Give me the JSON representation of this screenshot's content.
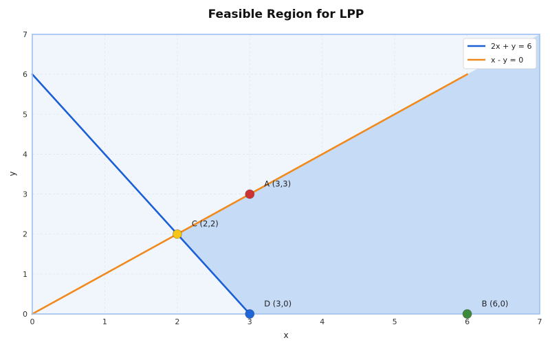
{
  "chart_data": {
    "type": "line",
    "title": "Feasible Region for LPP",
    "xlabel": "x",
    "ylabel": "y",
    "xlim": [
      0,
      7
    ],
    "ylim": [
      0,
      7
    ],
    "xticks": [
      0,
      1,
      2,
      3,
      4,
      5,
      6,
      7
    ],
    "yticks": [
      0,
      1,
      2,
      3,
      4,
      5,
      6,
      7
    ],
    "grid": true,
    "legend_position": "top-right",
    "colors": {
      "plot_bg": "#f1f6fd",
      "region": "#c6dbf6",
      "frame": "#9ec0ef",
      "grid": "#dfe6ef"
    },
    "series": [
      {
        "name": "2x + y = 6",
        "color": "#1a5fd6",
        "x": [
          0,
          3
        ],
        "y": [
          6,
          0
        ]
      },
      {
        "name": "x - y = 0",
        "color": "#f08a1c",
        "x": [
          0,
          6
        ],
        "y": [
          0,
          6
        ]
      }
    ],
    "feasible_region": [
      [
        2,
        2
      ],
      [
        3,
        0
      ],
      [
        7,
        0
      ],
      [
        7,
        7
      ]
    ],
    "points": [
      {
        "label": "A (3,3)",
        "x": 3,
        "y": 3,
        "color": "#cc3333"
      },
      {
        "label": "B (6,0)",
        "x": 6,
        "y": 0,
        "color": "#3f8a3a"
      },
      {
        "label": "C (2,2)",
        "x": 2,
        "y": 2,
        "color": "#f5c518"
      },
      {
        "label": "D (3,0)",
        "x": 3,
        "y": 0,
        "color": "#1f66d9"
      }
    ]
  }
}
